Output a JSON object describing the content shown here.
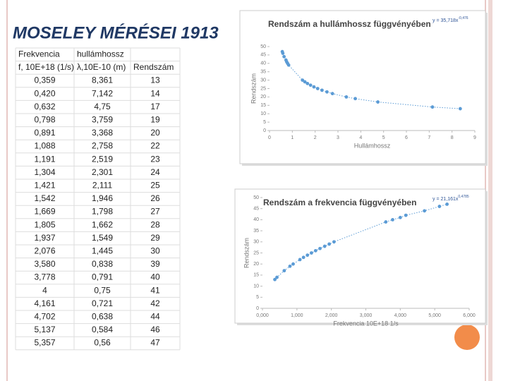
{
  "title": "MOSELEY MÉRÉSEI 1913",
  "table": {
    "header": [
      [
        "Frekvencia",
        "hullámhossz"
      ],
      [
        "f, 10E+18 (1/s)",
        "λ,10E-10 (m)",
        "Rendszám"
      ]
    ],
    "rows": [
      [
        "0,359",
        "8,361",
        "13"
      ],
      [
        "0,420",
        "7,142",
        "14"
      ],
      [
        "0,632",
        "4,75",
        "17"
      ],
      [
        "0,798",
        "3,759",
        "19"
      ],
      [
        "0,891",
        "3,368",
        "20"
      ],
      [
        "1,088",
        "2,758",
        "22"
      ],
      [
        "1,191",
        "2,519",
        "23"
      ],
      [
        "1,304",
        "2,301",
        "24"
      ],
      [
        "1,421",
        "2,111",
        "25"
      ],
      [
        "1,542",
        "1,946",
        "26"
      ],
      [
        "1,669",
        "1,798",
        "27"
      ],
      [
        "1,805",
        "1,662",
        "28"
      ],
      [
        "1,937",
        "1,549",
        "29"
      ],
      [
        "2,076",
        "1,445",
        "30"
      ],
      [
        "3,580",
        "0,838",
        "39"
      ],
      [
        "3,778",
        "0,791",
        "40"
      ],
      [
        "4",
        "0,75",
        "41"
      ],
      [
        "4,161",
        "0,721",
        "42"
      ],
      [
        "4,702",
        "0,638",
        "44"
      ],
      [
        "5,137",
        "0,584",
        "46"
      ],
      [
        "5,357",
        "0,56",
        "47"
      ]
    ]
  },
  "chart_data": [
    {
      "type": "scatter",
      "title": "Rendszám a hullámhossz függvényében",
      "equation": "y = 35,718x",
      "equation_exponent": "-0,476",
      "x_label": "Hullámhossz",
      "y_label": "Rendszám",
      "color": "#5b9bd5",
      "x": [
        8.361,
        7.142,
        4.75,
        3.759,
        3.368,
        2.758,
        2.519,
        2.301,
        2.111,
        1.946,
        1.798,
        1.662,
        1.549,
        1.445,
        0.838,
        0.791,
        0.75,
        0.721,
        0.638,
        0.584,
        0.56
      ],
      "values": [
        13,
        14,
        17,
        19,
        20,
        22,
        23,
        24,
        25,
        26,
        27,
        28,
        29,
        30,
        39,
        40,
        41,
        42,
        44,
        46,
        47
      ],
      "xlim": [
        0,
        9
      ],
      "xticks": [
        0,
        1,
        2,
        3,
        4,
        5,
        6,
        7,
        8,
        9
      ],
      "ylim": [
        0,
        50
      ],
      "yticks": [
        0,
        5,
        10,
        15,
        20,
        25,
        30,
        35,
        40,
        45,
        50
      ]
    },
    {
      "type": "scatter",
      "title": "Rendszám a frekvencia függvényében",
      "equation": "y = 21,161x",
      "equation_exponent": "0,4785",
      "x_label": "Frekvencia 10E+18 1/s",
      "y_label": "Rendszám",
      "color": "#5b9bd5",
      "x": [
        0.359,
        0.42,
        0.632,
        0.798,
        0.891,
        1.088,
        1.191,
        1.304,
        1.421,
        1.542,
        1.669,
        1.805,
        1.937,
        2.076,
        3.58,
        3.778,
        4,
        4.161,
        4.702,
        5.137,
        5.357
      ],
      "values": [
        13,
        14,
        17,
        19,
        20,
        22,
        23,
        24,
        25,
        26,
        27,
        28,
        29,
        30,
        39,
        40,
        41,
        42,
        44,
        46,
        47
      ],
      "xlim": [
        0,
        6
      ],
      "xticks": [
        {
          "value": 0,
          "label": "0,000"
        },
        {
          "value": 1,
          "label": "1,000"
        },
        {
          "value": 2,
          "label": "2,000"
        },
        {
          "value": 3,
          "label": "3,000"
        },
        {
          "value": 4,
          "label": "4,000"
        },
        {
          "value": 5,
          "label": "5,000"
        },
        {
          "value": 6,
          "label": "6,000"
        }
      ],
      "ylim": [
        0,
        50
      ],
      "yticks": [
        0,
        5,
        10,
        15,
        20,
        25,
        30,
        35,
        40,
        45,
        50
      ]
    }
  ]
}
